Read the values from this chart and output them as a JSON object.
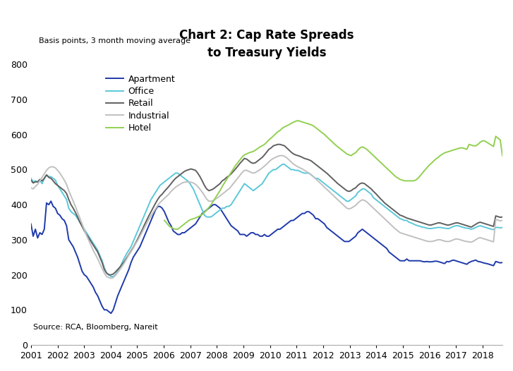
{
  "title": "Chart 2: Cap Rate Spreads\nto Treasury Yields",
  "ylabel": "Basis points, 3 month moving average",
  "source": "Source: RCA, Bloomberg, Nareit",
  "ylim": [
    0,
    800
  ],
  "yticks": [
    0,
    100,
    200,
    300,
    400,
    500,
    600,
    700,
    800
  ],
  "x_tick_years": [
    2001,
    2002,
    2003,
    2004,
    2005,
    2006,
    2007,
    2008,
    2009,
    2010,
    2011,
    2012,
    2013,
    2014,
    2015,
    2016,
    2017,
    2018
  ],
  "xlim": [
    2001.0,
    2018.75
  ],
  "background_color": "#ffffff",
  "series": {
    "Apartment": {
      "color": "#1f3aab",
      "linewidth": 1.4,
      "data": [
        345,
        310,
        330,
        305,
        320,
        315,
        330,
        405,
        400,
        410,
        395,
        390,
        375,
        370,
        360,
        355,
        340,
        300,
        290,
        280,
        265,
        250,
        230,
        210,
        200,
        195,
        185,
        175,
        165,
        150,
        140,
        125,
        110,
        100,
        100,
        95,
        90,
        100,
        120,
        140,
        155,
        170,
        185,
        200,
        215,
        235,
        250,
        260,
        270,
        280,
        295,
        310,
        325,
        340,
        355,
        370,
        385,
        395,
        395,
        390,
        380,
        365,
        350,
        340,
        325,
        320,
        315,
        315,
        320,
        320,
        325,
        330,
        335,
        340,
        345,
        355,
        365,
        375,
        380,
        385,
        390,
        395,
        400,
        400,
        395,
        390,
        380,
        370,
        360,
        350,
        340,
        335,
        330,
        325,
        315,
        315,
        315,
        310,
        315,
        320,
        320,
        315,
        315,
        310,
        310,
        315,
        310,
        310,
        315,
        320,
        325,
        330,
        330,
        335,
        340,
        345,
        350,
        355,
        355,
        360,
        365,
        370,
        375,
        375,
        380,
        380,
        375,
        370,
        360,
        360,
        355,
        350,
        345,
        335,
        330,
        325,
        320,
        315,
        310,
        305,
        300,
        295,
        295,
        295,
        300,
        305,
        310,
        320,
        325,
        330,
        325,
        320,
        315,
        310,
        305,
        300,
        295,
        290,
        285,
        280,
        275,
        265,
        260,
        255,
        250,
        245,
        240,
        240,
        240,
        245,
        240,
        240,
        240,
        240,
        240,
        240,
        238,
        237,
        238,
        237,
        237,
        238,
        239,
        238,
        236,
        234,
        232,
        238,
        237,
        240,
        242,
        240,
        238,
        236,
        234,
        232,
        230,
        235,
        238,
        240,
        242,
        238,
        237,
        235,
        233,
        232,
        230,
        228,
        226,
        238,
        236,
        234,
        235
      ]
    },
    "Office": {
      "color": "#5bc8d8",
      "linewidth": 1.4,
      "data": [
        475,
        465,
        468,
        465,
        470,
        460,
        475,
        485,
        480,
        480,
        475,
        470,
        455,
        445,
        435,
        425,
        415,
        390,
        380,
        375,
        370,
        360,
        350,
        340,
        330,
        320,
        310,
        300,
        290,
        280,
        270,
        255,
        240,
        220,
        205,
        200,
        195,
        195,
        200,
        210,
        220,
        235,
        248,
        260,
        270,
        280,
        295,
        310,
        325,
        340,
        355,
        370,
        385,
        400,
        415,
        425,
        435,
        445,
        455,
        460,
        465,
        470,
        475,
        480,
        485,
        490,
        490,
        485,
        480,
        475,
        470,
        465,
        455,
        445,
        430,
        415,
        400,
        385,
        370,
        365,
        365,
        365,
        370,
        375,
        380,
        385,
        390,
        390,
        395,
        395,
        400,
        410,
        420,
        430,
        440,
        450,
        460,
        455,
        450,
        445,
        440,
        445,
        450,
        455,
        460,
        470,
        480,
        490,
        495,
        500,
        500,
        505,
        510,
        515,
        515,
        510,
        505,
        500,
        500,
        498,
        498,
        495,
        492,
        490,
        490,
        490,
        485,
        480,
        475,
        475,
        470,
        465,
        460,
        455,
        450,
        445,
        440,
        435,
        430,
        425,
        420,
        415,
        410,
        410,
        415,
        420,
        425,
        435,
        440,
        445,
        445,
        440,
        435,
        430,
        420,
        415,
        410,
        405,
        400,
        395,
        390,
        385,
        380,
        375,
        370,
        365,
        360,
        358,
        355,
        355,
        350,
        348,
        345,
        342,
        340,
        338,
        336,
        335,
        333,
        332,
        332,
        333,
        334,
        335,
        335,
        334,
        333,
        332,
        332,
        335,
        338,
        340,
        340,
        338,
        336,
        334,
        333,
        332,
        330,
        332,
        335,
        338,
        340,
        338,
        336,
        334,
        332,
        330,
        329,
        335,
        335,
        334,
        335
      ]
    },
    "Retail": {
      "color": "#606060",
      "linewidth": 1.4,
      "data": [
        470,
        462,
        465,
        465,
        472,
        468,
        475,
        485,
        478,
        475,
        468,
        460,
        455,
        450,
        445,
        440,
        432,
        415,
        400,
        390,
        378,
        365,
        350,
        338,
        325,
        315,
        305,
        295,
        285,
        275,
        265,
        250,
        235,
        215,
        205,
        200,
        200,
        202,
        208,
        215,
        222,
        230,
        238,
        248,
        258,
        268,
        278,
        290,
        302,
        315,
        328,
        342,
        355,
        368,
        380,
        392,
        404,
        415,
        424,
        430,
        438,
        445,
        452,
        460,
        468,
        475,
        480,
        485,
        490,
        495,
        498,
        500,
        502,
        500,
        498,
        490,
        480,
        468,
        455,
        445,
        440,
        442,
        445,
        450,
        455,
        460,
        468,
        472,
        478,
        482,
        488,
        495,
        502,
        510,
        518,
        525,
        532,
        530,
        525,
        520,
        518,
        520,
        525,
        530,
        535,
        542,
        550,
        558,
        562,
        568,
        570,
        572,
        572,
        570,
        568,
        562,
        556,
        550,
        545,
        542,
        540,
        538,
        535,
        532,
        530,
        528,
        525,
        520,
        515,
        510,
        505,
        500,
        495,
        490,
        484,
        478,
        472,
        466,
        460,
        455,
        450,
        445,
        440,
        438,
        440,
        445,
        448,
        455,
        460,
        462,
        460,
        455,
        450,
        445,
        438,
        432,
        425,
        418,
        412,
        405,
        400,
        395,
        390,
        385,
        380,
        375,
        370,
        368,
        365,
        362,
        360,
        358,
        356,
        354,
        352,
        350,
        348,
        346,
        344,
        342,
        342,
        344,
        346,
        348,
        348,
        346,
        344,
        342,
        342,
        344,
        346,
        348,
        348,
        346,
        344,
        342,
        340,
        338,
        336,
        340,
        344,
        348,
        350,
        348,
        346,
        344,
        342,
        340,
        338,
        368,
        366,
        364,
        365
      ]
    },
    "Industrial": {
      "color": "#c0c0c0",
      "linewidth": 1.4,
      "data": [
        448,
        445,
        452,
        458,
        468,
        478,
        488,
        498,
        505,
        508,
        508,
        505,
        498,
        490,
        480,
        470,
        458,
        440,
        425,
        410,
        395,
        378,
        362,
        345,
        328,
        312,
        298,
        284,
        270,
        258,
        246,
        232,
        218,
        205,
        195,
        192,
        190,
        192,
        198,
        206,
        215,
        224,
        234,
        245,
        256,
        266,
        276,
        288,
        298,
        310,
        322,
        334,
        346,
        358,
        368,
        378,
        388,
        398,
        406,
        412,
        418,
        424,
        430,
        438,
        444,
        450,
        454,
        458,
        462,
        464,
        465,
        465,
        464,
        462,
        458,
        452,
        444,
        436,
        426,
        416,
        410,
        410,
        412,
        416,
        420,
        425,
        430,
        435,
        440,
        445,
        452,
        460,
        468,
        476,
        484,
        492,
        498,
        498,
        495,
        492,
        490,
        492,
        496,
        500,
        505,
        510,
        516,
        522,
        528,
        532,
        535,
        538,
        540,
        540,
        538,
        534,
        528,
        522,
        516,
        512,
        508,
        505,
        502,
        498,
        494,
        490,
        486,
        480,
        474,
        468,
        462,
        456,
        450,
        444,
        438,
        432,
        426,
        420,
        414,
        408,
        402,
        396,
        390,
        388,
        390,
        394,
        398,
        405,
        410,
        414,
        412,
        408,
        402,
        396,
        390,
        384,
        378,
        372,
        366,
        360,
        354,
        348,
        342,
        336,
        330,
        325,
        320,
        318,
        316,
        314,
        312,
        310,
        308,
        306,
        304,
        302,
        300,
        298,
        296,
        295,
        295,
        296,
        298,
        300,
        300,
        298,
        296,
        295,
        295,
        297,
        300,
        302,
        302,
        300,
        298,
        296,
        295,
        294,
        293,
        296,
        300,
        304,
        306,
        304,
        302,
        300,
        298,
        296,
        294,
        358,
        356,
        354,
        355
      ]
    },
    "Hotel": {
      "color": "#92d050",
      "linewidth": 1.4,
      "data": [
        null,
        null,
        null,
        null,
        null,
        null,
        null,
        null,
        null,
        null,
        null,
        null,
        null,
        null,
        null,
        null,
        null,
        null,
        null,
        null,
        null,
        null,
        null,
        null,
        null,
        null,
        null,
        null,
        null,
        null,
        null,
        null,
        null,
        null,
        null,
        null,
        null,
        null,
        null,
        null,
        null,
        null,
        null,
        null,
        null,
        null,
        null,
        null,
        null,
        null,
        null,
        null,
        null,
        null,
        null,
        null,
        null,
        null,
        null,
        null,
        355,
        348,
        340,
        335,
        332,
        330,
        330,
        335,
        340,
        345,
        350,
        355,
        358,
        360,
        362,
        365,
        368,
        372,
        378,
        385,
        392,
        400,
        410,
        420,
        430,
        440,
        452,
        462,
        472,
        482,
        492,
        502,
        512,
        520,
        528,
        536,
        542,
        545,
        548,
        550,
        552,
        556,
        560,
        565,
        568,
        572,
        578,
        585,
        590,
        596,
        602,
        608,
        612,
        618,
        622,
        625,
        628,
        632,
        635,
        638,
        640,
        638,
        636,
        634,
        632,
        630,
        628,
        625,
        620,
        615,
        610,
        605,
        600,
        594,
        588,
        582,
        576,
        570,
        565,
        560,
        555,
        550,
        545,
        542,
        540,
        545,
        548,
        556,
        562,
        565,
        562,
        558,
        552,
        546,
        540,
        534,
        528,
        522,
        516,
        510,
        504,
        498,
        492,
        486,
        480,
        476,
        472,
        470,
        468,
        468,
        468,
        468,
        468,
        470,
        475,
        482,
        490,
        498,
        505,
        512,
        518,
        524,
        530,
        534,
        540,
        544,
        548,
        550,
        552,
        554,
        556,
        558,
        560,
        562,
        562,
        560,
        558,
        572,
        570,
        568,
        568,
        572,
        578,
        582,
        582,
        578,
        574,
        570,
        566,
        595,
        590,
        585,
        540
      ]
    }
  }
}
